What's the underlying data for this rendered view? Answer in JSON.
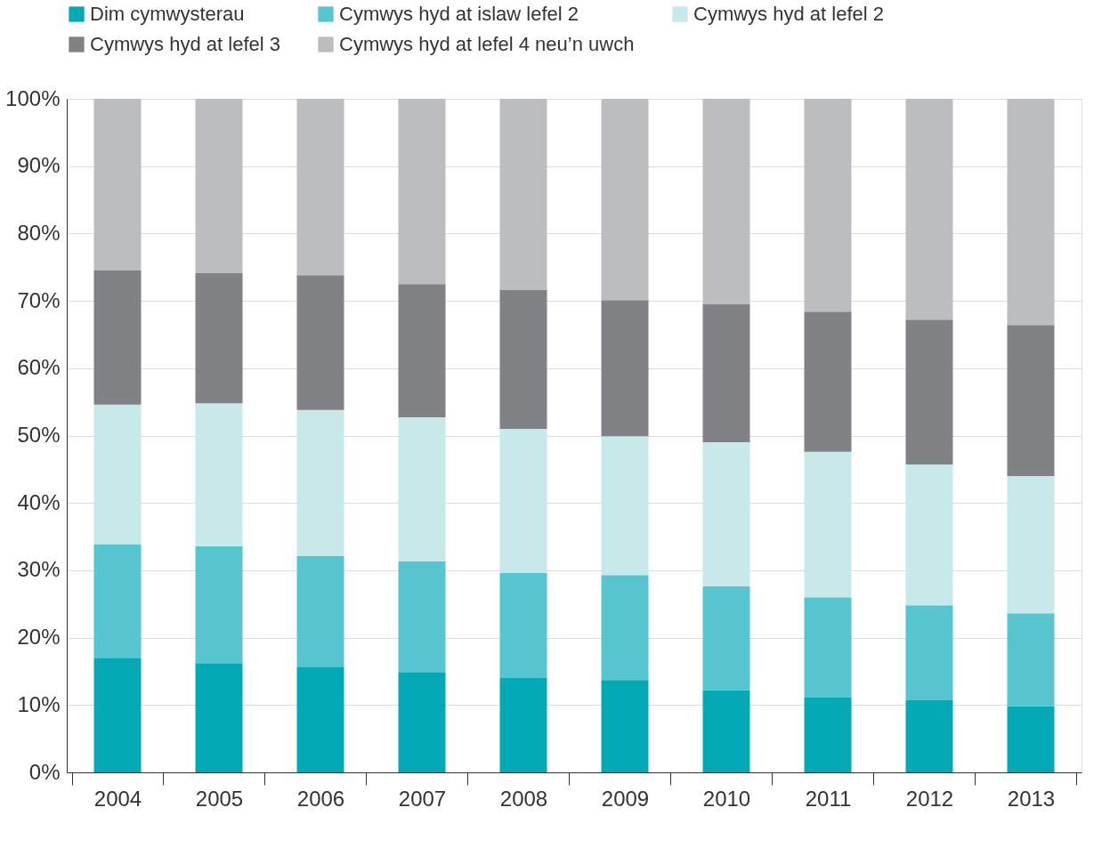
{
  "chart_data": {
    "type": "bar",
    "stacked": true,
    "categories": [
      "2004",
      "2005",
      "2006",
      "2007",
      "2008",
      "2009",
      "2010",
      "2011",
      "2012",
      "2013"
    ],
    "series": [
      {
        "name": "Dim cymwysterau",
        "color": "#03a9b5",
        "values": [
          17.0,
          16.2,
          15.7,
          14.9,
          14.0,
          13.7,
          12.2,
          11.1,
          10.7,
          9.8
        ]
      },
      {
        "name": "Cymwys hyd at islaw lefel 2",
        "color": "#56c5cf",
        "values": [
          16.9,
          17.4,
          16.4,
          16.4,
          15.6,
          15.6,
          15.4,
          14.9,
          14.1,
          13.8
        ]
      },
      {
        "name": "Cymwys hyd at lefel 2",
        "color": "#c8e9ea",
        "values": [
          20.7,
          21.2,
          21.7,
          21.4,
          21.4,
          20.6,
          21.4,
          21.6,
          20.9,
          20.4
        ]
      },
      {
        "name": "Cymwys hyd at lefel 3",
        "color": "#818286",
        "values": [
          19.9,
          19.3,
          20.0,
          19.8,
          20.6,
          20.2,
          20.5,
          20.8,
          21.5,
          22.4
        ]
      },
      {
        "name": "Cymwys hyd at lefel 4 neu’n uwch",
        "color": "#bcbdbf",
        "values": [
          25.5,
          25.9,
          26.2,
          27.5,
          28.4,
          29.9,
          30.5,
          31.6,
          32.8,
          33.6
        ]
      }
    ],
    "ylim": [
      0,
      100
    ],
    "yticks": [
      {
        "value": 0,
        "label": "0%"
      },
      {
        "value": 10,
        "label": "10%"
      },
      {
        "value": 20,
        "label": "20%"
      },
      {
        "value": 30,
        "label": "30%"
      },
      {
        "value": 40,
        "label": "40%"
      },
      {
        "value": 50,
        "label": "50%"
      },
      {
        "value": 60,
        "label": "60%"
      },
      {
        "value": 70,
        "label": "70%"
      },
      {
        "value": 80,
        "label": "80%"
      },
      {
        "value": 90,
        "label": "90%"
      },
      {
        "value": 100,
        "label": "100%"
      }
    ],
    "grid": "y",
    "legend": "top left"
  }
}
